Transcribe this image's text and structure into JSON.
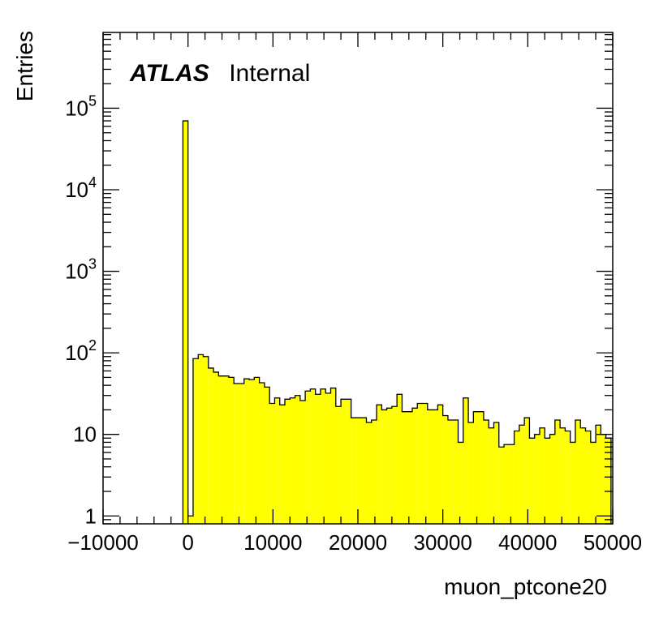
{
  "chart_data": {
    "type": "bar",
    "histogram": true,
    "log_y": true,
    "xlabel": "muon_ptcone20",
    "ylabel": "Entries",
    "annotation": {
      "bold": "ATLAS",
      "text": "Internal"
    },
    "xlim": [
      -10000,
      50000
    ],
    "ylim": [
      0.8,
      850000
    ],
    "x_ticks": [
      -10000,
      0,
      10000,
      20000,
      30000,
      40000,
      50000
    ],
    "x_tick_labels": [
      "−10000",
      "0",
      "10000",
      "20000",
      "30000",
      "40000",
      "50000"
    ],
    "y_ticks": [
      1,
      10,
      100,
      1000,
      10000,
      100000
    ],
    "y_tick_labels": [
      {
        "base": "1",
        "exp": ""
      },
      {
        "base": "10",
        "exp": ""
      },
      {
        "base": "10",
        "exp": "2"
      },
      {
        "base": "10",
        "exp": "3"
      },
      {
        "base": "10",
        "exp": "4"
      },
      {
        "base": "10",
        "exp": "5"
      }
    ],
    "fill_color": "#ffff00",
    "line_color": "#000000",
    "bin_width": 600,
    "bins_x_start": [
      -600,
      0,
      600,
      1200,
      1800,
      2400,
      3000,
      3600,
      4200,
      4800,
      5400,
      6000,
      6600,
      7200,
      7800,
      8400,
      9000,
      9600,
      10200,
      10800,
      11400,
      12000,
      12600,
      13200,
      13800,
      14400,
      15000,
      15600,
      16200,
      16800,
      17400,
      18000,
      18600,
      19200,
      19800,
      20400,
      21000,
      21600,
      22200,
      22800,
      23400,
      24000,
      24600,
      25200,
      25800,
      26400,
      27000,
      27600,
      28200,
      28800,
      29400,
      30000,
      30600,
      31200,
      31800,
      32400,
      33000,
      33600,
      34200,
      34800,
      35400,
      36000,
      36600,
      37200,
      37800,
      38400,
      39000,
      39600,
      40200,
      40800,
      41400,
      42000,
      42600,
      43200,
      43800,
      44400,
      45000,
      45600,
      46200,
      46800,
      47400,
      48000,
      48600,
      49200
    ],
    "values": [
      70000,
      1,
      85,
      95,
      90,
      65,
      58,
      52,
      52,
      50,
      42,
      42,
      48,
      47,
      50,
      43,
      38,
      24,
      28,
      23,
      27,
      28,
      30,
      26,
      34,
      36,
      31,
      36,
      32,
      37,
      22,
      27,
      27,
      16,
      16,
      16,
      14,
      15,
      23,
      20,
      21,
      22,
      31,
      19,
      19,
      21,
      24,
      24,
      20,
      20,
      23,
      17,
      15,
      15,
      8,
      28,
      14,
      19,
      19,
      15,
      12,
      14,
      7,
      7.5,
      7.5,
      11,
      13,
      16,
      9,
      10,
      12,
      9,
      10,
      15,
      12,
      11,
      8,
      15,
      12,
      11,
      8,
      13,
      10,
      9
    ]
  }
}
